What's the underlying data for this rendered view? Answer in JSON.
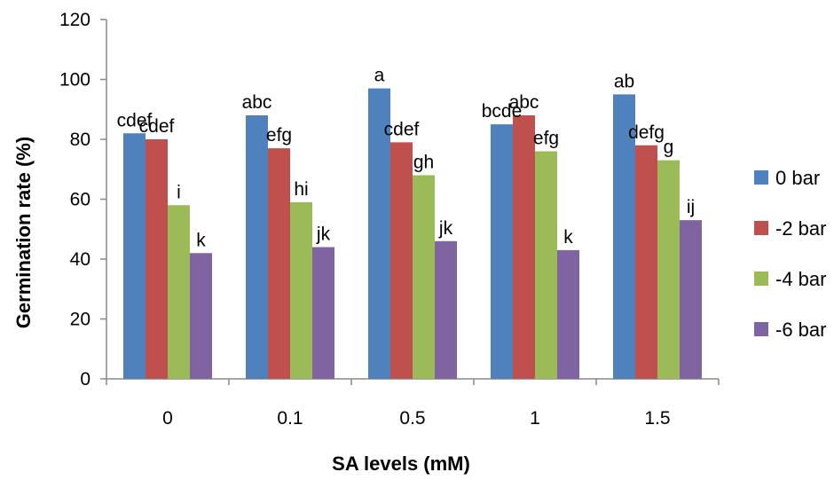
{
  "chart_data": {
    "type": "bar",
    "xlabel": "SA levels (mM)",
    "ylabel": "Germination rate (%)",
    "ylim": [
      0,
      120
    ],
    "yticks": [
      "0",
      "20",
      "40",
      "60",
      "80",
      "100",
      "120"
    ],
    "categories": [
      "0",
      "0.1",
      "0.5",
      "1",
      "1.5"
    ],
    "grid": false,
    "legend_position": "right",
    "series": [
      {
        "name": "0 bar",
        "color": "#4F81BD",
        "values": [
          82,
          88,
          97,
          85,
          95
        ],
        "labels": [
          "cdef",
          "abc",
          "a",
          "bcde",
          "ab"
        ]
      },
      {
        "name": "-2 bar",
        "color": "#C0504D",
        "values": [
          80,
          77,
          79,
          88,
          78
        ],
        "labels": [
          "cdef",
          "efg",
          "cdef",
          "abc",
          "defg"
        ]
      },
      {
        "name": "-4 bar",
        "color": "#9BBB59",
        "values": [
          58,
          59,
          68,
          76,
          73
        ],
        "labels": [
          "i",
          "hi",
          "gh",
          "efg",
          "g"
        ]
      },
      {
        "name": "-6 bar",
        "color": "#8064A2",
        "values": [
          42,
          44,
          46,
          43,
          53
        ],
        "labels": [
          "k",
          "jk",
          "jk",
          "k",
          "ij"
        ]
      }
    ]
  }
}
